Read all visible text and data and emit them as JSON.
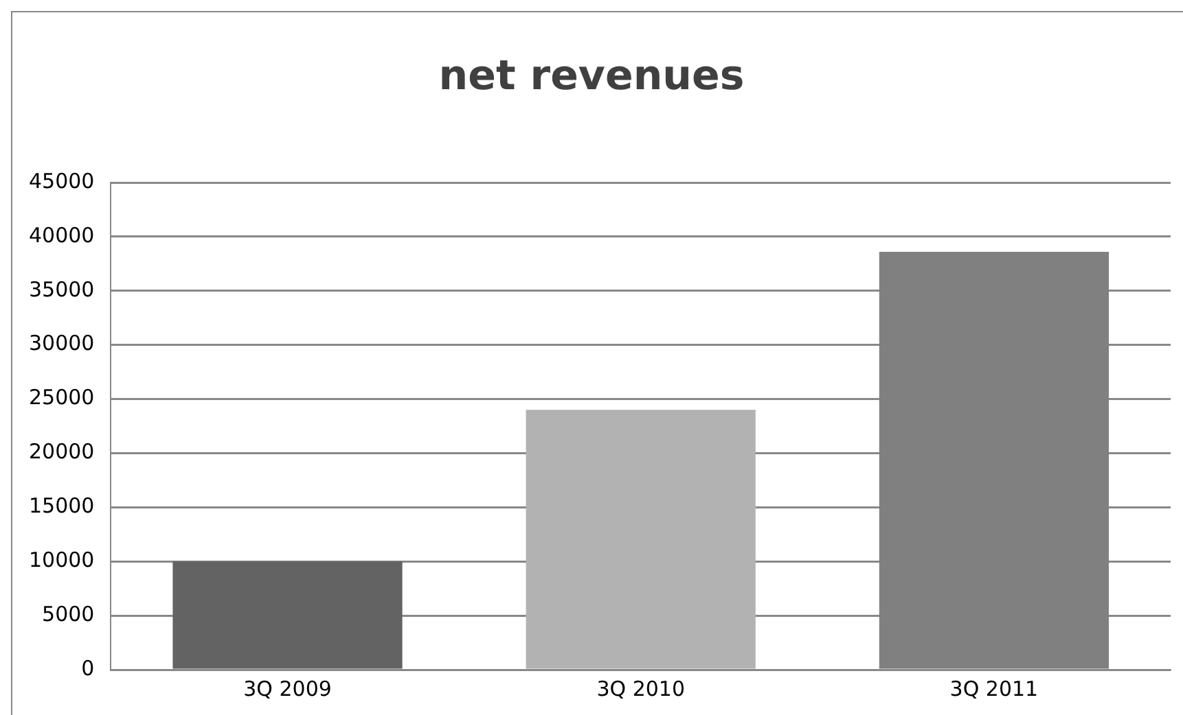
{
  "chart_data": {
    "type": "bar",
    "title": "net revenues",
    "categories": [
      "3Q 2009",
      "3Q 2010",
      "3Q 2011"
    ],
    "values": [
      10000,
      24000,
      38600
    ],
    "colors": [
      "#636363",
      "#b2b2b2",
      "#808080"
    ],
    "ylim": [
      0,
      45000
    ],
    "yticks": [
      0,
      5000,
      10000,
      15000,
      20000,
      25000,
      30000,
      35000,
      40000,
      45000
    ],
    "grid": "y",
    "legend": false
  }
}
